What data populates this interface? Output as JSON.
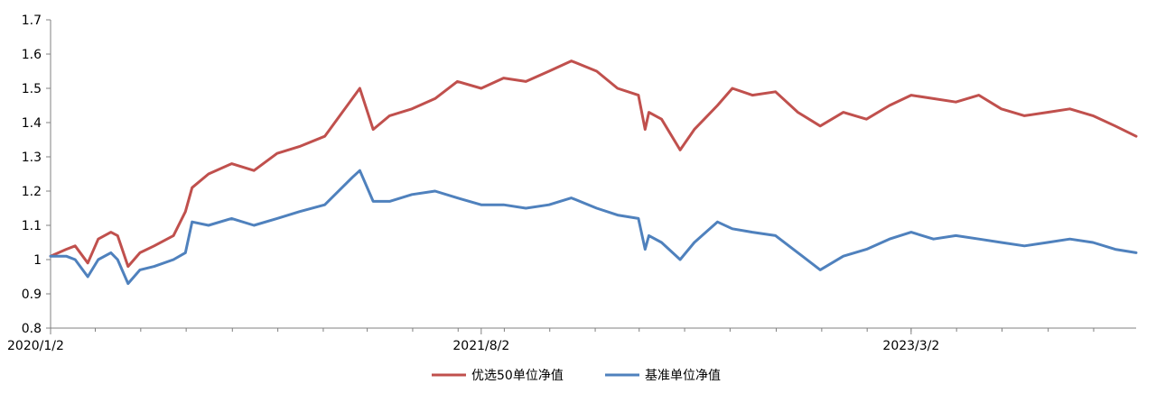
{
  "chart_data": {
    "type": "line",
    "title": "",
    "xlabel": "",
    "ylabel": "",
    "ylim": [
      0.8,
      1.7
    ],
    "y_ticks": [
      "0.8",
      "0.9",
      "1",
      "1.1",
      "1.2",
      "1.3",
      "1.4",
      "1.5",
      "1.6",
      "1.7"
    ],
    "x_tick_labels": [
      "2020/1/2",
      "2021/8/2",
      "2023/3/2"
    ],
    "x_tick_dates": [
      "2020-01-02",
      "2021-08-02",
      "2023-03-02"
    ],
    "x_range": [
      "2020-01-02",
      "2023-12-29"
    ],
    "grid": false,
    "legend_position": "bottom",
    "x": [
      "2020-01-02",
      "2020-01-23",
      "2020-02-04",
      "2020-02-21",
      "2020-03-06",
      "2020-03-23",
      "2020-04-01",
      "2020-04-15",
      "2020-05-01",
      "2020-05-20",
      "2020-06-15",
      "2020-07-01",
      "2020-07-10",
      "2020-08-01",
      "2020-09-01",
      "2020-10-01",
      "2020-11-01",
      "2020-12-01",
      "2021-01-04",
      "2021-02-10",
      "2021-02-20",
      "2021-03-10",
      "2021-04-01",
      "2021-05-01",
      "2021-06-01",
      "2021-07-01",
      "2021-08-02",
      "2021-09-01",
      "2021-10-01",
      "2021-11-01",
      "2021-12-01",
      "2022-01-04",
      "2022-02-01",
      "2022-03-01",
      "2022-03-10",
      "2022-03-15",
      "2022-04-01",
      "2022-04-26",
      "2022-05-15",
      "2022-06-15",
      "2022-07-05",
      "2022-08-01",
      "2022-09-01",
      "2022-10-01",
      "2022-10-31",
      "2022-12-01",
      "2023-01-01",
      "2023-02-01",
      "2023-03-02",
      "2023-04-01",
      "2023-05-01",
      "2023-06-01",
      "2023-07-01",
      "2023-08-01",
      "2023-09-01",
      "2023-10-01",
      "2023-11-01",
      "2023-12-01",
      "2023-12-29"
    ],
    "series": [
      {
        "name": "优选50单位净值",
        "color": "#c0504d",
        "values": [
          1.01,
          1.03,
          1.04,
          0.99,
          1.06,
          1.08,
          1.07,
          0.98,
          1.02,
          1.04,
          1.07,
          1.14,
          1.21,
          1.25,
          1.28,
          1.26,
          1.31,
          1.33,
          1.36,
          1.47,
          1.5,
          1.38,
          1.42,
          1.44,
          1.47,
          1.52,
          1.5,
          1.53,
          1.52,
          1.55,
          1.58,
          1.55,
          1.5,
          1.48,
          1.38,
          1.43,
          1.41,
          1.32,
          1.38,
          1.45,
          1.5,
          1.48,
          1.49,
          1.43,
          1.39,
          1.43,
          1.41,
          1.45,
          1.48,
          1.47,
          1.46,
          1.48,
          1.44,
          1.42,
          1.43,
          1.44,
          1.42,
          1.39,
          1.36
        ]
      },
      {
        "name": "基准单位净值",
        "color": "#4f81bd",
        "values": [
          1.01,
          1.01,
          1.0,
          0.95,
          1.0,
          1.02,
          1.0,
          0.93,
          0.97,
          0.98,
          1.0,
          1.02,
          1.11,
          1.1,
          1.12,
          1.1,
          1.12,
          1.14,
          1.16,
          1.24,
          1.26,
          1.17,
          1.17,
          1.19,
          1.2,
          1.18,
          1.16,
          1.16,
          1.15,
          1.16,
          1.18,
          1.15,
          1.13,
          1.12,
          1.03,
          1.07,
          1.05,
          1.0,
          1.05,
          1.11,
          1.09,
          1.08,
          1.07,
          1.02,
          0.97,
          1.01,
          1.03,
          1.06,
          1.08,
          1.06,
          1.07,
          1.06,
          1.05,
          1.04,
          1.05,
          1.06,
          1.05,
          1.03,
          1.02
        ]
      }
    ]
  }
}
